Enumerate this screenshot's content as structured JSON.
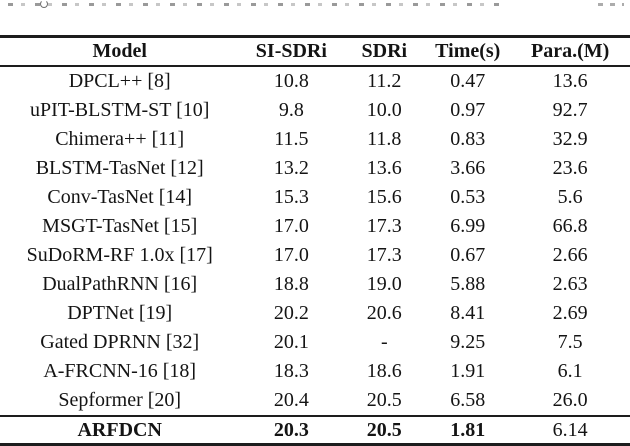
{
  "page": {
    "background": "#ffffff",
    "text_color": "#141414",
    "rule_color": "#1d1d1d"
  },
  "table": {
    "columns": [
      "Model",
      "SI-SDRi",
      "SDRi",
      "Time(s)",
      "Para.(M)"
    ],
    "rows": [
      {
        "cells": [
          "DPCL++ [8]",
          "10.8",
          "11.2",
          "0.47",
          "13.6"
        ]
      },
      {
        "cells": [
          "uPIT-BLSTM-ST [10]",
          "9.8",
          "10.0",
          "0.97",
          "92.7"
        ]
      },
      {
        "cells": [
          "Chimera++ [11]",
          "11.5",
          "11.8",
          "0.83",
          "32.9"
        ]
      },
      {
        "cells": [
          "BLSTM-TasNet [12]",
          "13.2",
          "13.6",
          "3.66",
          "23.6"
        ]
      },
      {
        "cells": [
          "Conv-TasNet [14]",
          "15.3",
          "15.6",
          "0.53",
          "5.6"
        ]
      },
      {
        "cells": [
          "MSGT-TasNet [15]",
          "17.0",
          "17.3",
          "6.99",
          "66.8"
        ]
      },
      {
        "cells": [
          "SuDoRM-RF 1.0x [17]",
          "17.0",
          "17.3",
          "0.67",
          "2.66"
        ]
      },
      {
        "cells": [
          "DualPathRNN [16]",
          "18.8",
          "19.0",
          "5.88",
          "2.63"
        ]
      },
      {
        "cells": [
          "DPTNet [19]",
          "20.2",
          "20.6",
          "8.41",
          "2.69"
        ]
      },
      {
        "cells": [
          "Gated DPRNN [32]",
          "20.1",
          "-",
          "9.25",
          "7.5"
        ]
      },
      {
        "cells": [
          "A-FRCNN-16 [18]",
          "18.3",
          "18.6",
          "1.91",
          "6.1"
        ]
      },
      {
        "cells": [
          "Sepformer [20]",
          "20.4",
          "20.5",
          "6.58",
          "26.0"
        ]
      },
      {
        "cells": [
          "ARFDCN",
          "20.3",
          "20.5",
          "1.81",
          "6.14"
        ],
        "bold_cells": [
          true,
          true,
          true,
          true,
          false
        ],
        "final": true
      }
    ]
  }
}
